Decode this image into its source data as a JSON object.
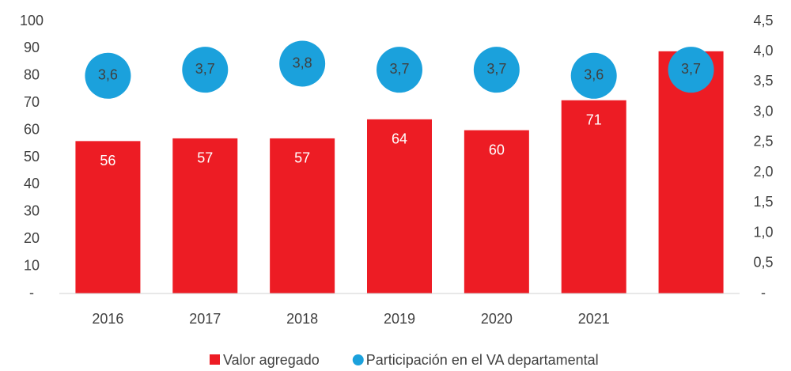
{
  "chart_data": {
    "type": "bar",
    "categories": [
      "2016",
      "2017",
      "2018",
      "2019",
      "2020",
      "2021",
      null
    ],
    "series": [
      {
        "name": "Valor agregado",
        "type": "bar",
        "color": "#ed1c24",
        "axis": "y",
        "values": [
          56,
          57,
          57,
          64,
          60,
          71,
          89
        ]
      },
      {
        "name": "Participación en el VA departamental",
        "type": "scatter",
        "color": "#1ba1dc",
        "axis": "y2",
        "values": [
          3.6,
          3.7,
          3.8,
          3.7,
          3.7,
          3.6,
          3.7
        ],
        "value_labels": [
          "3,6",
          "3,7",
          "3,8",
          "3,7",
          "3,7",
          "3,6",
          "3,7"
        ]
      }
    ],
    "ylim": [
      0,
      100
    ],
    "yticks": [
      {
        "value": 0,
        "label": "-"
      },
      10,
      20,
      30,
      40,
      50,
      60,
      70,
      80,
      90,
      100
    ],
    "y2lim": [
      0,
      4.5
    ],
    "y2ticks": [
      {
        "value": 0,
        "label": "-"
      },
      {
        "value": 0.5,
        "label": "0,5"
      },
      {
        "value": 1,
        "label": "1,0"
      },
      {
        "value": 1.5,
        "label": "1,5"
      },
      {
        "value": 2,
        "label": "2,0"
      },
      {
        "value": 2.5,
        "label": "2,5"
      },
      {
        "value": 3,
        "label": "3,0"
      },
      {
        "value": 3.5,
        "label": "3,5"
      },
      {
        "value": 4,
        "label": "4,0"
      },
      {
        "value": 4.5,
        "label": "4,5"
      }
    ],
    "grid": false,
    "legend": "bottom"
  }
}
